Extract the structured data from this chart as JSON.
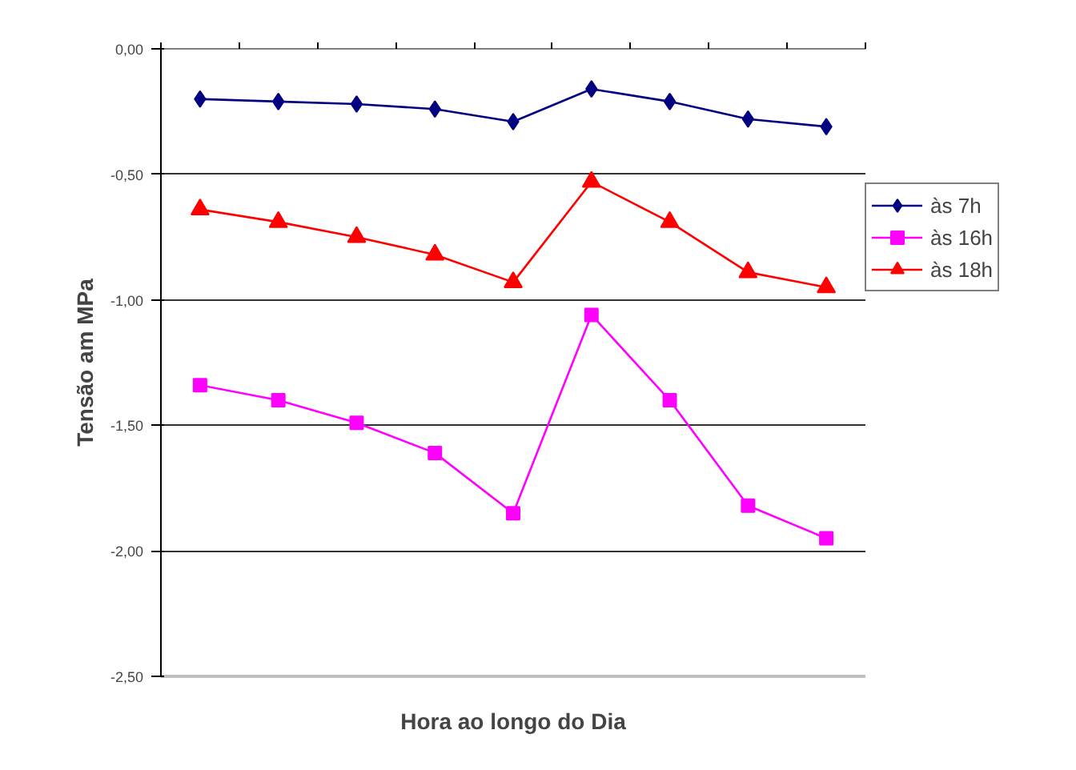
{
  "chart_data": {
    "type": "line",
    "xlabel": "Hora ao longo do Dia",
    "ylabel": "Tensão am MPa",
    "categories": [
      null,
      null,
      null,
      null,
      null,
      null,
      null,
      null,
      null
    ],
    "series": [
      {
        "name": "às 7h",
        "color": "#000080",
        "marker": "diamond",
        "values": [
          -0.2,
          -0.21,
          -0.22,
          -0.24,
          -0.29,
          -0.16,
          -0.21,
          -0.28,
          -0.31
        ]
      },
      {
        "name": "às 16h",
        "color": "#ff00ff",
        "marker": "square",
        "values": [
          -1.34,
          -1.4,
          -1.49,
          -1.61,
          -1.85,
          -1.06,
          -1.4,
          -1.82,
          -1.95
        ]
      },
      {
        "name": "às 18h",
        "color": "#ff0000",
        "marker": "triangle",
        "values": [
          -0.64,
          -0.69,
          -0.75,
          -0.82,
          -0.93,
          -0.53,
          -0.69,
          -0.89,
          -0.95
        ]
      }
    ],
    "ylim": [
      -2.5,
      0
    ],
    "yticks": [
      {
        "value": 0,
        "label": "0,00"
      },
      {
        "value": -0.5,
        "label": "-0,50"
      },
      {
        "value": -1,
        "label": "-1,00"
      },
      {
        "value": -1.5,
        "label": "-1,50"
      },
      {
        "value": -2,
        "label": "-2,00"
      },
      {
        "value": -2.5,
        "label": "-2,50"
      }
    ],
    "grid": "y",
    "legend": "right",
    "line_style": "solid"
  }
}
